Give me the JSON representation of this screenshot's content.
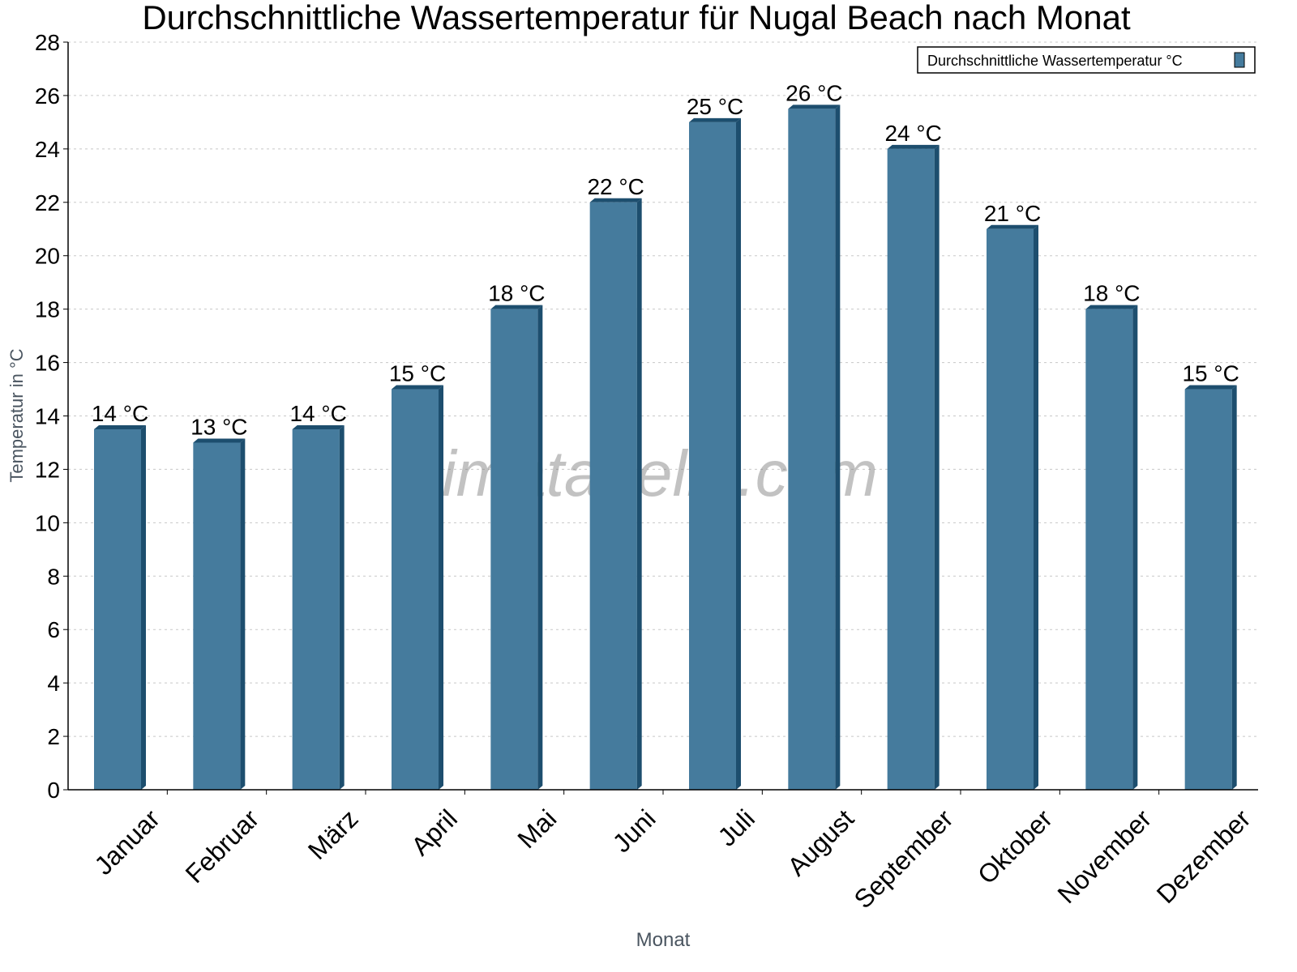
{
  "chart_data": {
    "type": "bar",
    "title": "Durchschnittliche Wassertemperatur für Nugal Beach nach Monat",
    "xlabel": "Monat",
    "ylabel": "Temperatur in °C",
    "ylim": [
      0,
      28
    ],
    "yticks": [
      0,
      2,
      4,
      6,
      8,
      10,
      12,
      14,
      16,
      18,
      20,
      22,
      24,
      26,
      28
    ],
    "grid": true,
    "legend_placement": "top-right",
    "categories": [
      "Januar",
      "Februar",
      "März",
      "April",
      "Mai",
      "Juni",
      "Juli",
      "August",
      "September",
      "Oktober",
      "November",
      "Dezember"
    ],
    "series": [
      {
        "name": "Durchschnittliche Wassertemperatur °C",
        "values": [
          13.5,
          13,
          13.5,
          15,
          18,
          22,
          25,
          25.5,
          24,
          21,
          18,
          15
        ],
        "labels": [
          "14 °C",
          "13 °C",
          "14 °C",
          "15 °C",
          "18 °C",
          "22 °C",
          "25 °C",
          "26 °C",
          "24 °C",
          "21 °C",
          "18 °C",
          "15 °C"
        ]
      }
    ],
    "colors": {
      "bar": "#457b9d",
      "bar_side": "#1d4e6e",
      "grid": "#c8c8c8"
    },
    "watermark": "klimatabelle.com"
  }
}
